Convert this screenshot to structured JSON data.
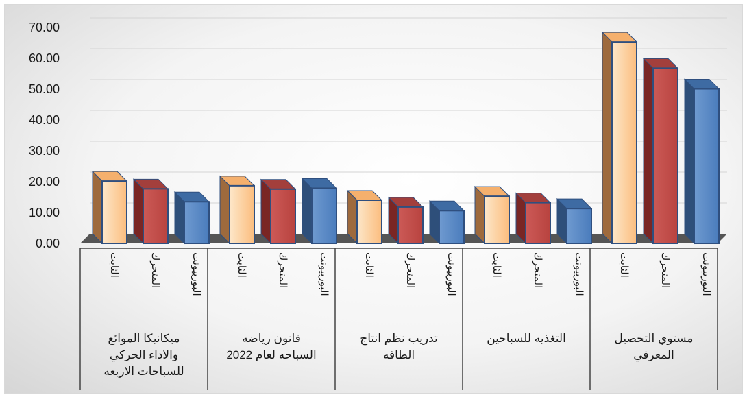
{
  "chart_data": {
    "type": "bar",
    "title": "",
    "xlabel": "",
    "ylabel": "",
    "ylim": [
      0,
      70
    ],
    "yticks": [
      "0.00",
      "10.00",
      "20.00",
      "30.00",
      "40.00",
      "50.00",
      "60.00",
      "70.00"
    ],
    "grid": true,
    "legend": "none",
    "categories": [
      "ميكانيكا الموائع والاداء الحركي للسباحات الاربعه",
      "قانون رياضه السباحه لعام 2022",
      "تدريب نظم انتاج الطاقه",
      "التغذيه للسباحين",
      "مستوي التحصيل المعرفي"
    ],
    "series": [
      {
        "name": "الثابت",
        "color": "#fcc58e",
        "values": [
          20.2,
          18.7,
          14.0,
          15.3,
          65.3
        ]
      },
      {
        "name": "المتحرك",
        "color": "#c0504d",
        "values": [
          17.7,
          17.6,
          11.8,
          13.2,
          56.8
        ]
      },
      {
        "name": "البوربيونت",
        "color": "#4f81bd",
        "values": [
          13.5,
          17.9,
          10.6,
          11.3,
          50.1
        ]
      }
    ]
  }
}
